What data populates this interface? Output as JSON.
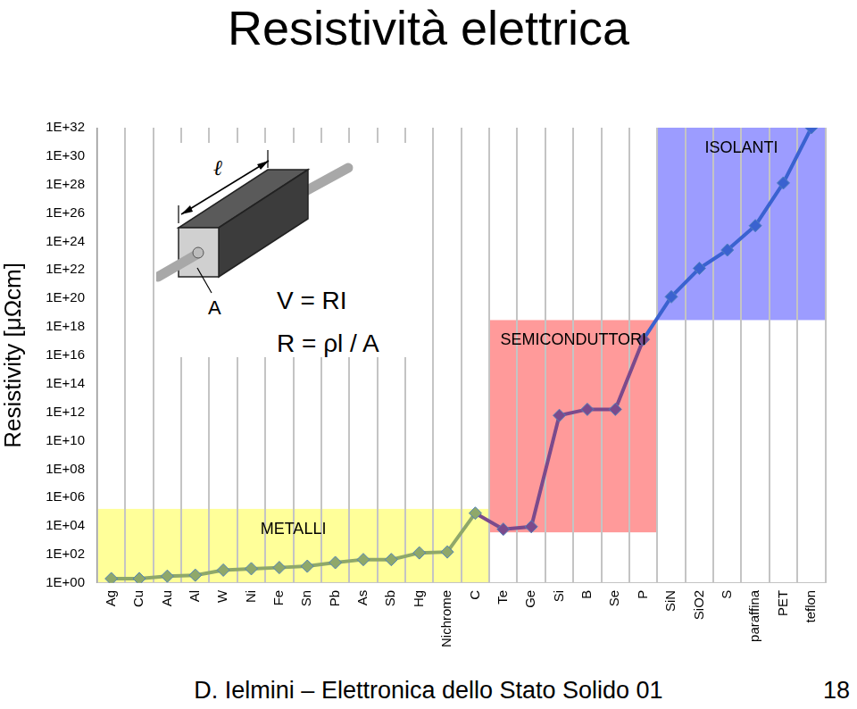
{
  "chart_data": {
    "type": "line",
    "title": "Resistività elettrica",
    "y_label": "Resistivity [μΩcm]",
    "categories": [
      "Ag",
      "Cu",
      "Au",
      "Al",
      "W",
      "Ni",
      "Fe",
      "Sn",
      "Pb",
      "As",
      "Sb",
      "Hg",
      "Nichrome",
      "C",
      "Te",
      "Ge",
      "Si",
      "B",
      "Se",
      "P",
      "SiN",
      "SiO2",
      "S",
      "paraffina",
      "PET",
      "teflon"
    ],
    "series": [
      {
        "name": "Resistivity",
        "color": "#4f81bd",
        "marker": "diamond",
        "values": [
          2,
          2,
          3,
          3.5,
          8,
          10,
          12,
          15,
          27,
          44,
          44,
          130,
          150,
          80000,
          6000,
          9000,
          600000000000.0,
          1600000000000.0,
          1600000000000.0,
          1.3e+17,
          1.3e+20,
          1.3e+22,
          2.5e+23,
          1.3e+25,
          1.3e+28,
          1e+32
        ]
      }
    ],
    "log": "y",
    "ylim": [
      1,
      1e+32
    ],
    "yticks": [
      {
        "value": 1,
        "label": "1E+00"
      },
      {
        "value": 100,
        "label": "1E+02"
      },
      {
        "value": 10000,
        "label": "1E+04"
      },
      {
        "value": 1000000.0,
        "label": "1E+06"
      },
      {
        "value": 100000000.0,
        "label": "1E+08"
      },
      {
        "value": 10000000000.0,
        "label": "1E+10"
      },
      {
        "value": 1000000000000.0,
        "label": "1E+12"
      },
      {
        "value": 100000000000000.0,
        "label": "1E+14"
      },
      {
        "value": 1e+16,
        "label": "1E+16"
      },
      {
        "value": 1e+18,
        "label": "1E+18"
      },
      {
        "value": 1e+20,
        "label": "1E+20"
      },
      {
        "value": 1e+22,
        "label": "1E+22"
      },
      {
        "value": 1e+24,
        "label": "1E+24"
      },
      {
        "value": 1e+26,
        "label": "1E+26"
      },
      {
        "value": 1e+28,
        "label": "1E+28"
      },
      {
        "value": 1e+30,
        "label": "1E+30"
      },
      {
        "value": 1e+32,
        "label": "1E+32"
      }
    ],
    "grid": "x",
    "regions": [
      {
        "label": "METALLI",
        "from": "Ag",
        "to": "C",
        "ylim": [
          1,
          160000
        ],
        "color": "#ffff99",
        "line_color": "#8fa86a"
      },
      {
        "label": "SEMICONDUTTORI",
        "from": "Te",
        "to": "P",
        "ylim": [
          3600,
          3e+18
        ],
        "color": "#ff9a9a",
        "line_color": "#7b4a8c"
      },
      {
        "label": "ISOLANTI",
        "from": "SiN",
        "to": "teflon",
        "ylim": [
          3e+18,
          1e+32
        ],
        "color": "#9c9cff",
        "line_color": "#3a62d0"
      }
    ],
    "annotations": [
      "V = RI",
      "R = ρl / A"
    ],
    "inset": {
      "length_label": "ℓ",
      "area_label": "A"
    },
    "footer": {
      "text": "D. Ielmini – Elettronica dello Stato Solido 01",
      "page": "18"
    }
  }
}
